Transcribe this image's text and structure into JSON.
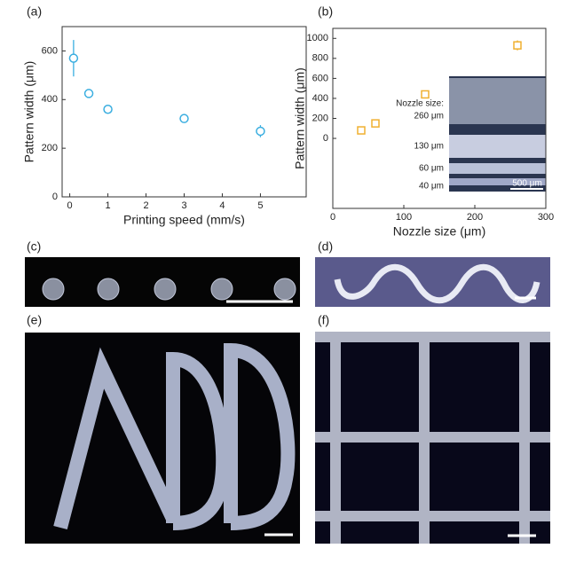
{
  "panels": [
    "(a)",
    "(b)",
    "(c)",
    "(d)",
    "(e)",
    "(f)"
  ],
  "chart_data": [
    {
      "type": "scatter",
      "xlabel": "Printing speed (mm/s)",
      "ylabel": "Pattern width (μm)",
      "x": [
        0.1,
        0.5,
        1,
        3,
        5
      ],
      "values": [
        570,
        425,
        360,
        322,
        270
      ],
      "errors": [
        75,
        8,
        10,
        6,
        25
      ],
      "color": "#3aaee0",
      "marker": "circle",
      "xlim": [
        -0.2,
        6.2
      ],
      "xticks": [
        0,
        1,
        2,
        3,
        4,
        5
      ],
      "ylim": [
        0,
        700
      ],
      "yticks": [
        0,
        200,
        400,
        600
      ]
    },
    {
      "type": "scatter",
      "xlabel": "Nozzle size (μm)",
      "ylabel": "Pattern width (μm)",
      "x": [
        40,
        60,
        130,
        260
      ],
      "values": [
        80,
        150,
        440,
        930
      ],
      "errors": [
        20,
        20,
        20,
        50
      ],
      "color": "#f0b030",
      "marker": "square",
      "xlim": [
        0,
        300
      ],
      "xticks": [
        0,
        100,
        200,
        300
      ],
      "ylim": [
        -700,
        1100
      ],
      "yticks": [
        0,
        200,
        400,
        600,
        800,
        1000
      ],
      "annotations": [
        "Nozzle size:",
        "260 μm",
        "130 μm",
        "60 μm",
        "40 μm",
        "500 μm"
      ]
    }
  ]
}
